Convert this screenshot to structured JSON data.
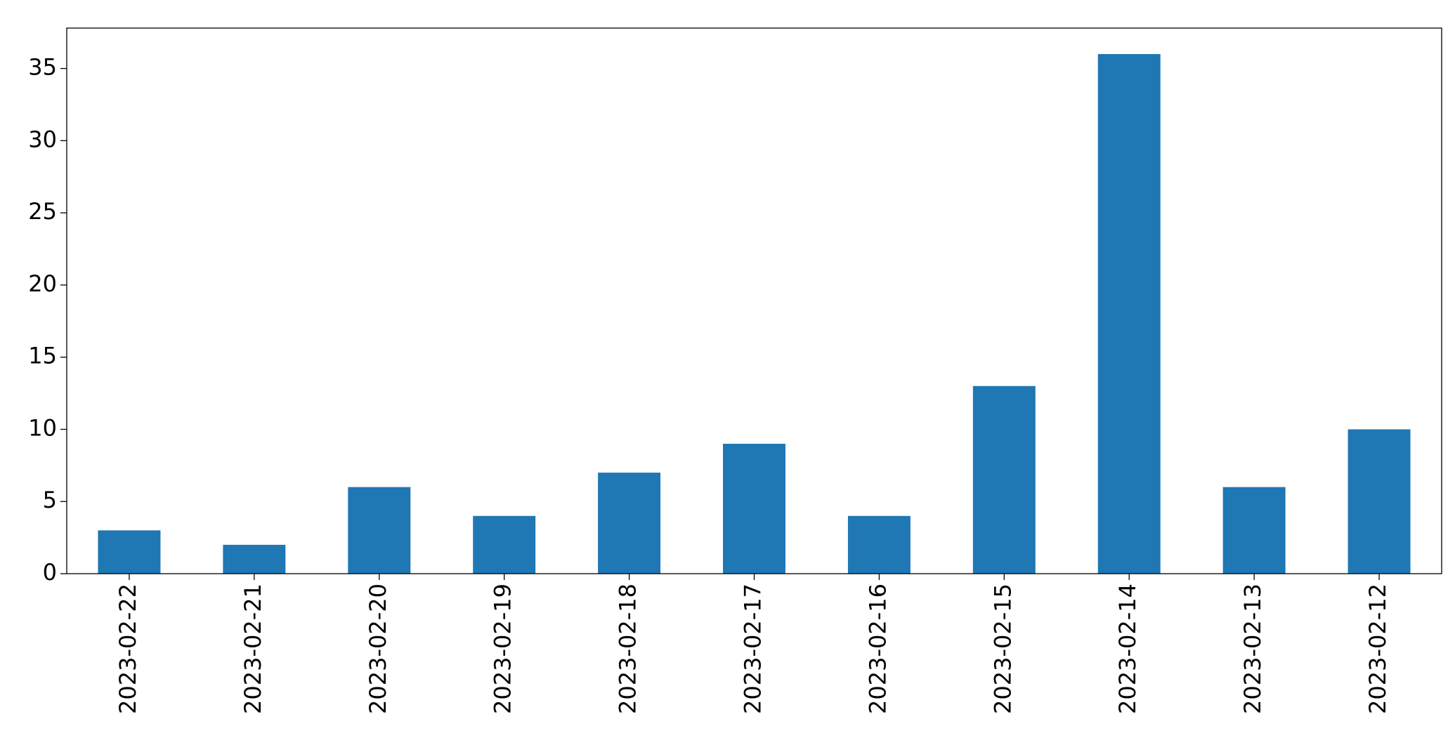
{
  "chart_data": {
    "type": "bar",
    "categories": [
      "2023-02-22",
      "2023-02-21",
      "2023-02-20",
      "2023-02-19",
      "2023-02-18",
      "2023-02-17",
      "2023-02-16",
      "2023-02-15",
      "2023-02-14",
      "2023-02-13",
      "2023-02-12"
    ],
    "values": [
      3,
      2,
      6,
      4,
      7,
      9,
      4,
      13,
      36,
      6,
      10
    ],
    "color": "#1f77b4",
    "ylim": [
      0,
      37.8
    ],
    "yticks": [
      0,
      5,
      10,
      15,
      20,
      25,
      30,
      35
    ],
    "grid": false
  }
}
